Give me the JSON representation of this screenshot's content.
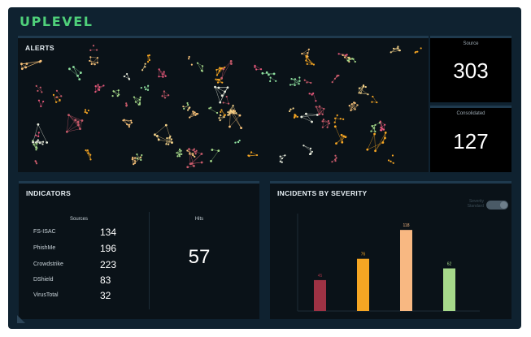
{
  "app": {
    "logo": "UPLEVEL"
  },
  "alerts": {
    "title": "ALERTS",
    "source": {
      "label": "Source",
      "value": "303"
    },
    "consolidated": {
      "label": "Consolidated",
      "value": "127"
    }
  },
  "indicators": {
    "title": "INDICATORS",
    "sources_header": "Sources",
    "hits_header": "Hits",
    "hits_value": "57",
    "rows": [
      {
        "name": "FS-ISAC",
        "value": "134"
      },
      {
        "name": "PhishMe",
        "value": "196"
      },
      {
        "name": "Crowdstrike",
        "value": "223"
      },
      {
        "name": "DShield",
        "value": "83"
      },
      {
        "name": "VirusTotal",
        "value": "32"
      }
    ]
  },
  "incidents": {
    "title": "INCIDENTS BY SEVERITY",
    "toggle_label": "Severity Standard"
  },
  "chart_data": {
    "type": "bar",
    "categories": [
      "",
      "",
      "",
      ""
    ],
    "values": [
      45,
      76,
      118,
      62
    ],
    "colors": [
      "#9e3244",
      "#f6a623",
      "#f8b882",
      "#a6d98a"
    ],
    "ylim": [
      0,
      130
    ],
    "grid": false
  }
}
